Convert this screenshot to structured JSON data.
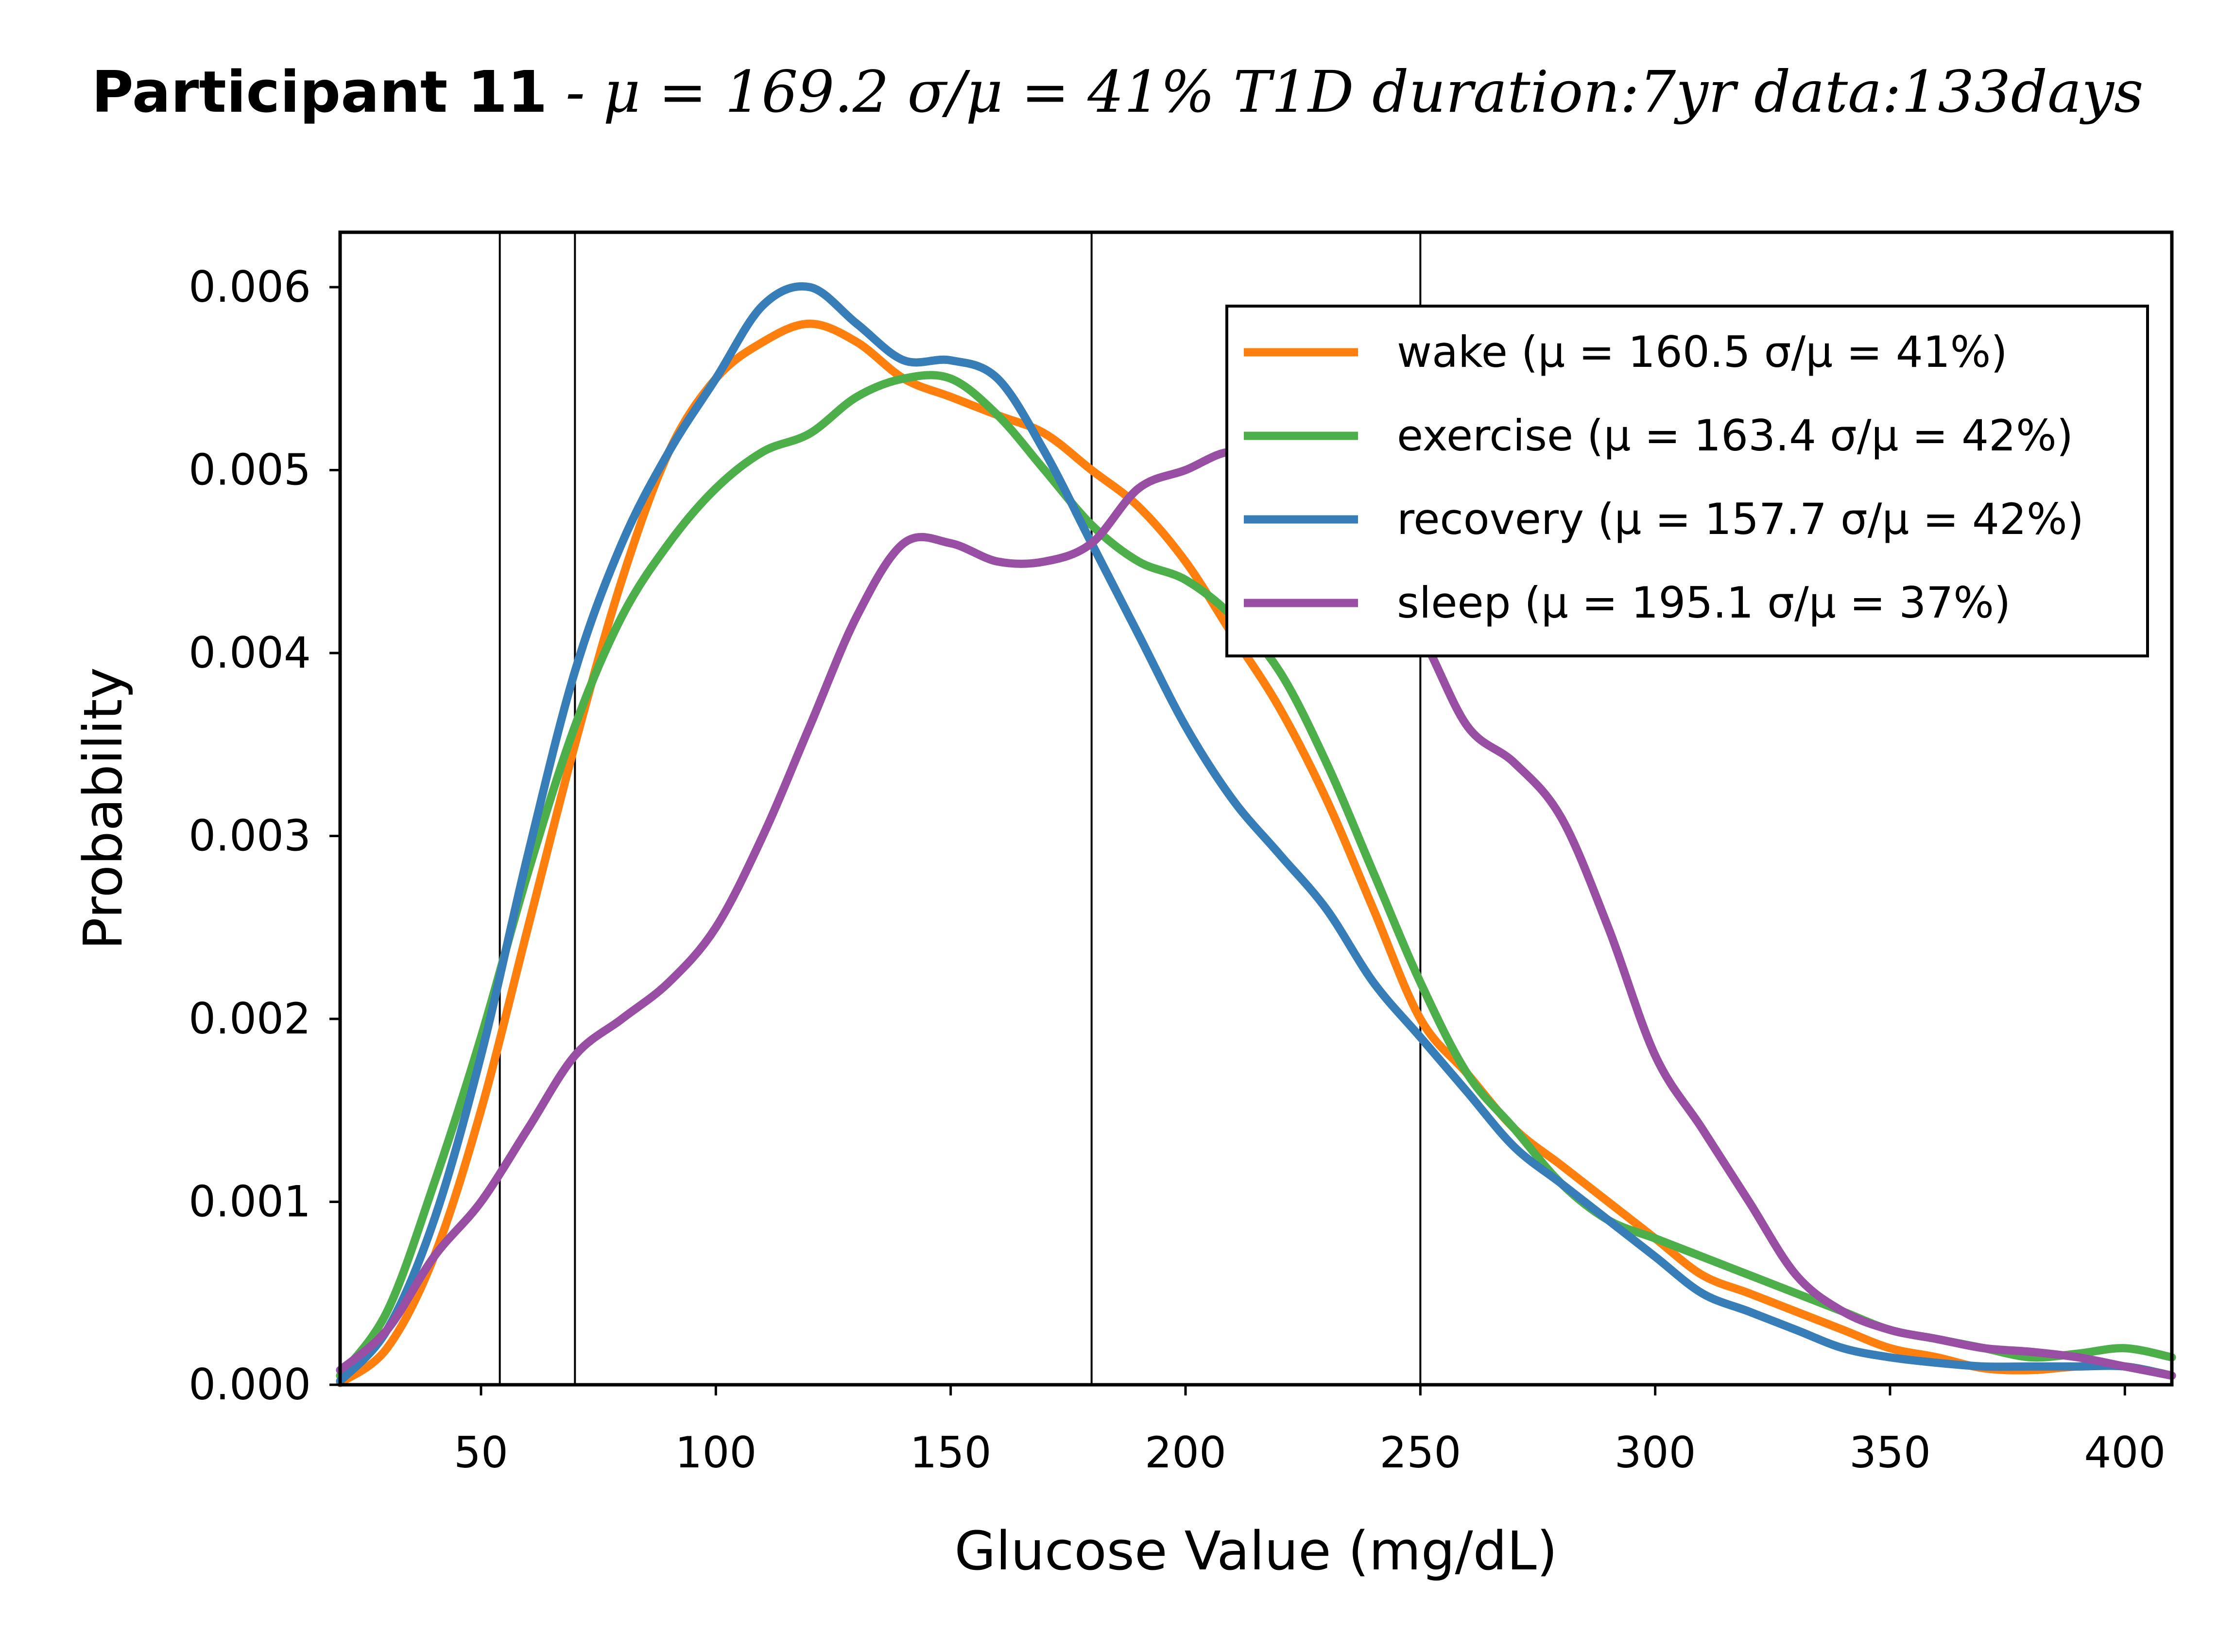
{
  "chart_data": {
    "type": "line",
    "title": {
      "bold_part": "Participant 11",
      "rest_part": " - μ = 169.2  σ/μ = 41%   T1D duration:7yr  data:133days"
    },
    "xlabel": "Glucose Value (mg/dL)",
    "ylabel": "Probability",
    "xlim": [
      20,
      410
    ],
    "ylim": [
      0,
      0.0063
    ],
    "x_ticks": [
      50,
      100,
      150,
      200,
      250,
      300,
      350,
      400
    ],
    "y_ticks": [
      0.0,
      0.001,
      0.002,
      0.003,
      0.004,
      0.005,
      0.006
    ],
    "y_tick_labels": [
      "0.000",
      "0.001",
      "0.002",
      "0.003",
      "0.004",
      "0.005",
      "0.006"
    ],
    "vertical_lines": [
      54,
      70,
      180,
      250
    ],
    "legend_position": "upper-right",
    "grid": false,
    "series": [
      {
        "name": "wake (μ = 160.5 σ/μ = 41%)",
        "color": "#ff7f0e",
        "x": [
          20,
          30,
          40,
          50,
          60,
          70,
          80,
          90,
          100,
          110,
          120,
          130,
          140,
          150,
          160,
          170,
          180,
          190,
          200,
          210,
          220,
          230,
          240,
          250,
          260,
          270,
          280,
          290,
          300,
          310,
          320,
          330,
          340,
          350,
          360,
          370,
          380,
          390,
          400,
          410
        ],
        "y": [
          1e-05,
          0.0002,
          0.0007,
          0.0015,
          0.0025,
          0.0035,
          0.0044,
          0.0051,
          0.0055,
          0.0057,
          0.0058,
          0.0057,
          0.0055,
          0.0054,
          0.0053,
          0.0052,
          0.005,
          0.0048,
          0.0045,
          0.0041,
          0.0037,
          0.0032,
          0.0026,
          0.002,
          0.0017,
          0.0014,
          0.0012,
          0.001,
          0.0008,
          0.0006,
          0.0005,
          0.0004,
          0.0003,
          0.0002,
          0.00015,
          9e-05,
          8e-05,
          0.0001,
          0.0001,
          5e-05
        ]
      },
      {
        "name": "exercise (μ = 163.4 σ/μ = 42%)",
        "color": "#4daf4a",
        "x": [
          20,
          30,
          40,
          50,
          60,
          70,
          80,
          90,
          100,
          110,
          120,
          130,
          140,
          150,
          160,
          170,
          180,
          190,
          200,
          210,
          220,
          230,
          240,
          250,
          260,
          270,
          280,
          290,
          300,
          310,
          320,
          330,
          340,
          350,
          360,
          370,
          380,
          390,
          400,
          410
        ],
        "y": [
          5e-05,
          0.0004,
          0.0011,
          0.0019,
          0.0028,
          0.0036,
          0.0042,
          0.0046,
          0.0049,
          0.0051,
          0.0052,
          0.0054,
          0.0055,
          0.0055,
          0.0053,
          0.005,
          0.0047,
          0.0045,
          0.0044,
          0.0042,
          0.0039,
          0.0034,
          0.0028,
          0.0022,
          0.0017,
          0.0014,
          0.0011,
          0.0009,
          0.0008,
          0.0007,
          0.0006,
          0.0005,
          0.0004,
          0.0003,
          0.00025,
          0.0002,
          0.00015,
          0.00017,
          0.0002,
          0.00015
        ]
      },
      {
        "name": "recovery (μ = 157.7 σ/μ = 42%)",
        "color": "#377eb8",
        "x": [
          20,
          30,
          40,
          50,
          60,
          70,
          80,
          90,
          100,
          110,
          120,
          130,
          140,
          150,
          160,
          170,
          180,
          190,
          200,
          210,
          220,
          230,
          240,
          250,
          260,
          270,
          280,
          290,
          300,
          310,
          320,
          330,
          340,
          350,
          360,
          370,
          380,
          390,
          400,
          410
        ],
        "y": [
          2e-05,
          0.0003,
          0.0009,
          0.0018,
          0.0029,
          0.0039,
          0.0046,
          0.0051,
          0.0055,
          0.0059,
          0.006,
          0.0058,
          0.0056,
          0.0056,
          0.0055,
          0.0051,
          0.0046,
          0.0041,
          0.0036,
          0.0032,
          0.0029,
          0.0026,
          0.0022,
          0.0019,
          0.0016,
          0.0013,
          0.0011,
          0.0009,
          0.0007,
          0.0005,
          0.0004,
          0.0003,
          0.0002,
          0.00015,
          0.00012,
          0.0001,
          0.0001,
          0.0001,
          0.0001,
          5e-05
        ]
      },
      {
        "name": "sleep (μ = 195.1 σ/μ = 37%)",
        "color": "#984ea3",
        "x": [
          20,
          30,
          40,
          50,
          60,
          70,
          80,
          90,
          100,
          110,
          120,
          130,
          140,
          150,
          160,
          170,
          180,
          190,
          200,
          210,
          220,
          230,
          240,
          250,
          260,
          270,
          280,
          290,
          300,
          310,
          320,
          330,
          340,
          350,
          360,
          370,
          380,
          390,
          400,
          410
        ],
        "y": [
          8e-05,
          0.0003,
          0.0007,
          0.001,
          0.0014,
          0.0018,
          0.002,
          0.0022,
          0.0025,
          0.003,
          0.0036,
          0.0042,
          0.0046,
          0.0046,
          0.0045,
          0.0045,
          0.0046,
          0.0049,
          0.005,
          0.0051,
          0.005,
          0.0047,
          0.0044,
          0.0041,
          0.0036,
          0.0034,
          0.0031,
          0.0025,
          0.0018,
          0.0014,
          0.001,
          0.0006,
          0.0004,
          0.0003,
          0.00025,
          0.0002,
          0.00018,
          0.00015,
          0.0001,
          5e-05
        ]
      }
    ]
  }
}
